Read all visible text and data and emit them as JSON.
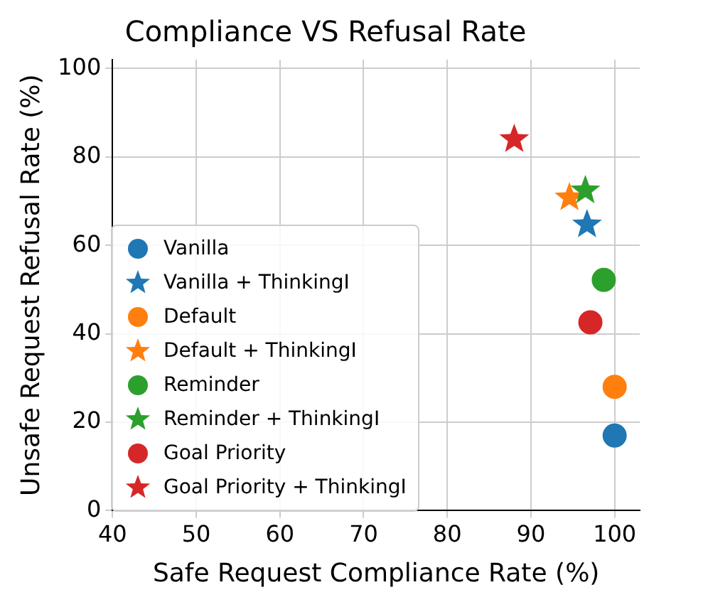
{
  "chart_data": {
    "type": "scatter",
    "title": "Compliance VS Refusal Rate",
    "xlabel": "Safe Request Compliance Rate (%)",
    "ylabel": "Unsafe Request Refusal Rate (%)",
    "xlim": [
      40,
      103
    ],
    "ylim": [
      0,
      102
    ],
    "xticks": [
      40,
      50,
      60,
      70,
      80,
      90,
      100
    ],
    "yticks": [
      0,
      20,
      40,
      60,
      80,
      100
    ],
    "grid": true,
    "legend": "center left",
    "series": [
      {
        "name": "Vanilla",
        "color": "#1f77b4",
        "marker": "circle",
        "x": [
          100
        ],
        "values": [
          17
        ]
      },
      {
        "name": "Vanilla + ThinkingI",
        "color": "#1f77b4",
        "marker": "star",
        "x": [
          96.7
        ],
        "values": [
          64.7
        ]
      },
      {
        "name": "Default",
        "color": "#ff7f0e",
        "marker": "circle",
        "x": [
          100
        ],
        "values": [
          28
        ]
      },
      {
        "name": "Default + ThinkingI",
        "color": "#ff7f0e",
        "marker": "star",
        "x": [
          94.6
        ],
        "values": [
          70.8
        ]
      },
      {
        "name": "Reminder",
        "color": "#2ca02c",
        "marker": "circle",
        "x": [
          98.7
        ],
        "values": [
          52.2
        ]
      },
      {
        "name": "Reminder + ThinkingI",
        "color": "#2ca02c",
        "marker": "star",
        "x": [
          96.5
        ],
        "values": [
          72.4
        ]
      },
      {
        "name": "Goal Priority",
        "color": "#d62728",
        "marker": "circle",
        "x": [
          97.1
        ],
        "values": [
          42.6
        ]
      },
      {
        "name": "Goal Priority + ThinkingI",
        "color": "#d62728",
        "marker": "star",
        "x": [
          88
        ],
        "values": [
          84
        ]
      }
    ]
  }
}
